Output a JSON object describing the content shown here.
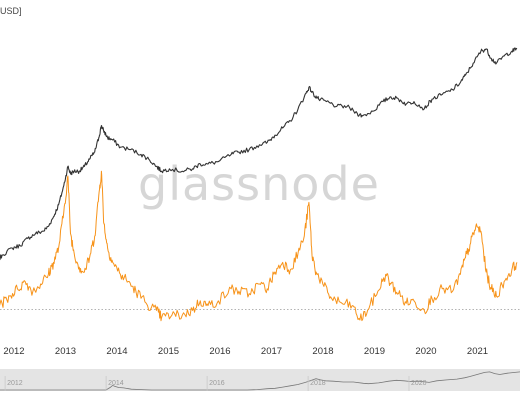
{
  "chart_data": {
    "type": "line",
    "ylabel_fragment": "USD]",
    "watermark": "glassnode",
    "x_ticks": [
      "2012",
      "2013",
      "2014",
      "2015",
      "2016",
      "2017",
      "2018",
      "2019",
      "2020",
      "2021"
    ],
    "navigator_ticks": [
      "2012",
      "2014",
      "2016",
      "2018",
      "2020"
    ],
    "grid": false,
    "dotted_baseline": true,
    "series": [
      {
        "color": "#333333",
        "points": [
          [
            2011.7,
            0.22
          ],
          [
            2011.9,
            0.24
          ],
          [
            2012.0,
            0.27
          ],
          [
            2012.2,
            0.3
          ],
          [
            2012.35,
            0.31
          ],
          [
            2012.5,
            0.34
          ],
          [
            2012.65,
            0.36
          ],
          [
            2012.8,
            0.37
          ],
          [
            2012.9,
            0.39
          ],
          [
            2013.0,
            0.43
          ],
          [
            2013.1,
            0.48
          ],
          [
            2013.2,
            0.56
          ],
          [
            2013.28,
            0.64
          ],
          [
            2013.33,
            0.61
          ],
          [
            2013.4,
            0.62
          ],
          [
            2013.5,
            0.62
          ],
          [
            2013.6,
            0.64
          ],
          [
            2013.7,
            0.67
          ],
          [
            2013.8,
            0.7
          ],
          [
            2013.88,
            0.76
          ],
          [
            2013.93,
            0.81
          ],
          [
            2013.97,
            0.79
          ],
          [
            2014.05,
            0.76
          ],
          [
            2014.15,
            0.75
          ],
          [
            2014.3,
            0.72
          ],
          [
            2014.5,
            0.71
          ],
          [
            2014.7,
            0.69
          ],
          [
            2014.85,
            0.67
          ],
          [
            2015.0,
            0.64
          ],
          [
            2015.1,
            0.62
          ],
          [
            2015.25,
            0.63
          ],
          [
            2015.5,
            0.62
          ],
          [
            2015.7,
            0.63
          ],
          [
            2015.85,
            0.65
          ],
          [
            2016.0,
            0.65
          ],
          [
            2016.2,
            0.66
          ],
          [
            2016.45,
            0.69
          ],
          [
            2016.6,
            0.7
          ],
          [
            2016.8,
            0.71
          ],
          [
            2017.0,
            0.73
          ],
          [
            2017.15,
            0.74
          ],
          [
            2017.3,
            0.77
          ],
          [
            2017.45,
            0.8
          ],
          [
            2017.6,
            0.83
          ],
          [
            2017.75,
            0.88
          ],
          [
            2017.87,
            0.93
          ],
          [
            2017.96,
            0.97
          ],
          [
            2018.05,
            0.94
          ],
          [
            2018.15,
            0.92
          ],
          [
            2018.3,
            0.91
          ],
          [
            2018.5,
            0.89
          ],
          [
            2018.7,
            0.89
          ],
          [
            2018.9,
            0.86
          ],
          [
            2019.0,
            0.85
          ],
          [
            2019.2,
            0.87
          ],
          [
            2019.4,
            0.91
          ],
          [
            2019.55,
            0.93
          ],
          [
            2019.7,
            0.92
          ],
          [
            2019.85,
            0.9
          ],
          [
            2020.0,
            0.91
          ],
          [
            2020.2,
            0.88
          ],
          [
            2020.35,
            0.92
          ],
          [
            2020.55,
            0.94
          ],
          [
            2020.75,
            0.96
          ],
          [
            2020.9,
            0.99
          ],
          [
            2021.0,
            1.02
          ],
          [
            2021.15,
            1.07
          ],
          [
            2021.3,
            1.12
          ],
          [
            2021.4,
            1.13
          ],
          [
            2021.5,
            1.09
          ],
          [
            2021.6,
            1.07
          ],
          [
            2021.75,
            1.1
          ],
          [
            2021.9,
            1.12
          ],
          [
            2022.0,
            1.13
          ]
        ]
      },
      {
        "color": "#f7931a",
        "points": [
          [
            2011.7,
            0.1
          ],
          [
            2011.85,
            0.08
          ],
          [
            2012.0,
            0.07
          ],
          [
            2012.15,
            0.1
          ],
          [
            2012.3,
            0.13
          ],
          [
            2012.45,
            0.16
          ],
          [
            2012.6,
            0.12
          ],
          [
            2012.75,
            0.15
          ],
          [
            2012.9,
            0.19
          ],
          [
            2013.0,
            0.24
          ],
          [
            2013.1,
            0.3
          ],
          [
            2013.2,
            0.45
          ],
          [
            2013.28,
            0.6
          ],
          [
            2013.33,
            0.36
          ],
          [
            2013.4,
            0.28
          ],
          [
            2013.5,
            0.22
          ],
          [
            2013.6,
            0.2
          ],
          [
            2013.7,
            0.26
          ],
          [
            2013.8,
            0.35
          ],
          [
            2013.88,
            0.52
          ],
          [
            2013.93,
            0.62
          ],
          [
            2013.98,
            0.4
          ],
          [
            2014.05,
            0.3
          ],
          [
            2014.15,
            0.24
          ],
          [
            2014.3,
            0.19
          ],
          [
            2014.45,
            0.16
          ],
          [
            2014.6,
            0.12
          ],
          [
            2014.8,
            0.07
          ],
          [
            2015.0,
            0.04
          ],
          [
            2015.1,
            0.01
          ],
          [
            2015.3,
            0.02
          ],
          [
            2015.5,
            0.02
          ],
          [
            2015.7,
            0.04
          ],
          [
            2015.85,
            0.08
          ],
          [
            2016.0,
            0.06
          ],
          [
            2016.2,
            0.08
          ],
          [
            2016.45,
            0.13
          ],
          [
            2016.6,
            0.12
          ],
          [
            2016.8,
            0.11
          ],
          [
            2017.0,
            0.15
          ],
          [
            2017.15,
            0.13
          ],
          [
            2017.3,
            0.2
          ],
          [
            2017.45,
            0.24
          ],
          [
            2017.6,
            0.21
          ],
          [
            2017.75,
            0.28
          ],
          [
            2017.87,
            0.35
          ],
          [
            2017.96,
            0.49
          ],
          [
            2018.02,
            0.27
          ],
          [
            2018.1,
            0.2
          ],
          [
            2018.25,
            0.14
          ],
          [
            2018.4,
            0.09
          ],
          [
            2018.6,
            0.07
          ],
          [
            2018.8,
            0.06
          ],
          [
            2018.95,
            0.0
          ],
          [
            2019.1,
            0.04
          ],
          [
            2019.3,
            0.12
          ],
          [
            2019.45,
            0.19
          ],
          [
            2019.55,
            0.15
          ],
          [
            2019.7,
            0.11
          ],
          [
            2019.85,
            0.07
          ],
          [
            2020.0,
            0.08
          ],
          [
            2020.2,
            0.04
          ],
          [
            2020.35,
            0.09
          ],
          [
            2020.55,
            0.13
          ],
          [
            2020.75,
            0.12
          ],
          [
            2020.9,
            0.19
          ],
          [
            2021.0,
            0.26
          ],
          [
            2021.1,
            0.32
          ],
          [
            2021.2,
            0.39
          ],
          [
            2021.3,
            0.37
          ],
          [
            2021.4,
            0.2
          ],
          [
            2021.5,
            0.13
          ],
          [
            2021.6,
            0.1
          ],
          [
            2021.75,
            0.16
          ],
          [
            2021.9,
            0.21
          ],
          [
            2022.0,
            0.24
          ]
        ]
      }
    ]
  }
}
